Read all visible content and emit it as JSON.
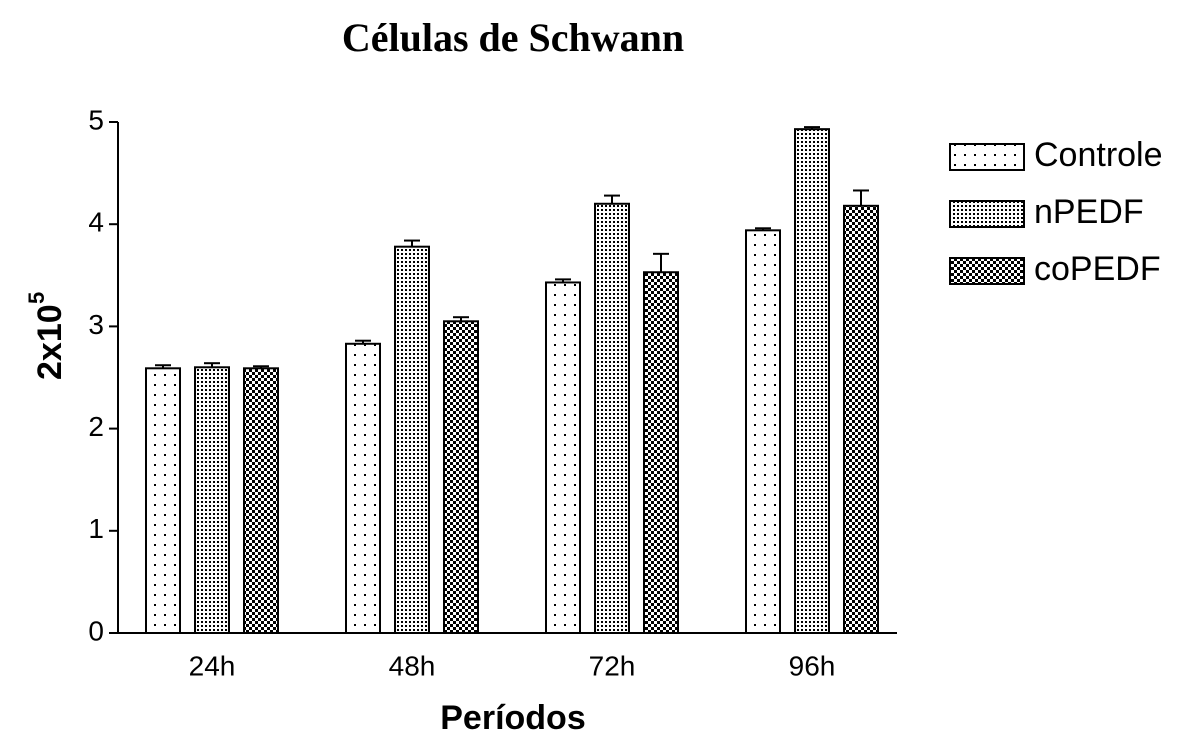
{
  "chart_data": {
    "type": "bar",
    "title": "Células de Schwann",
    "xlabel": "Períodos",
    "ylabel": "2x10",
    "ylabel_exponent": "5",
    "categories": [
      "24h",
      "48h",
      "72h",
      "96h"
    ],
    "series": [
      {
        "name": "Controle",
        "color": "#000000",
        "values": [
          2.59,
          2.83,
          3.43,
          3.94
        ],
        "errors": [
          0.03,
          0.03,
          0.03,
          0.02
        ]
      },
      {
        "name": "nPEDF",
        "color": "#000000",
        "values": [
          2.6,
          3.78,
          4.2,
          4.93
        ],
        "errors": [
          0.04,
          0.06,
          0.08,
          0.02
        ]
      },
      {
        "name": "coPEDF",
        "color": "#000000",
        "values": [
          2.59,
          3.05,
          3.53,
          4.18
        ],
        "errors": [
          0.02,
          0.04,
          0.18,
          0.15
        ]
      }
    ],
    "ylim": [
      0,
      5
    ],
    "yticks": [
      0,
      1,
      2,
      3,
      4,
      5
    ],
    "legend": "right"
  }
}
